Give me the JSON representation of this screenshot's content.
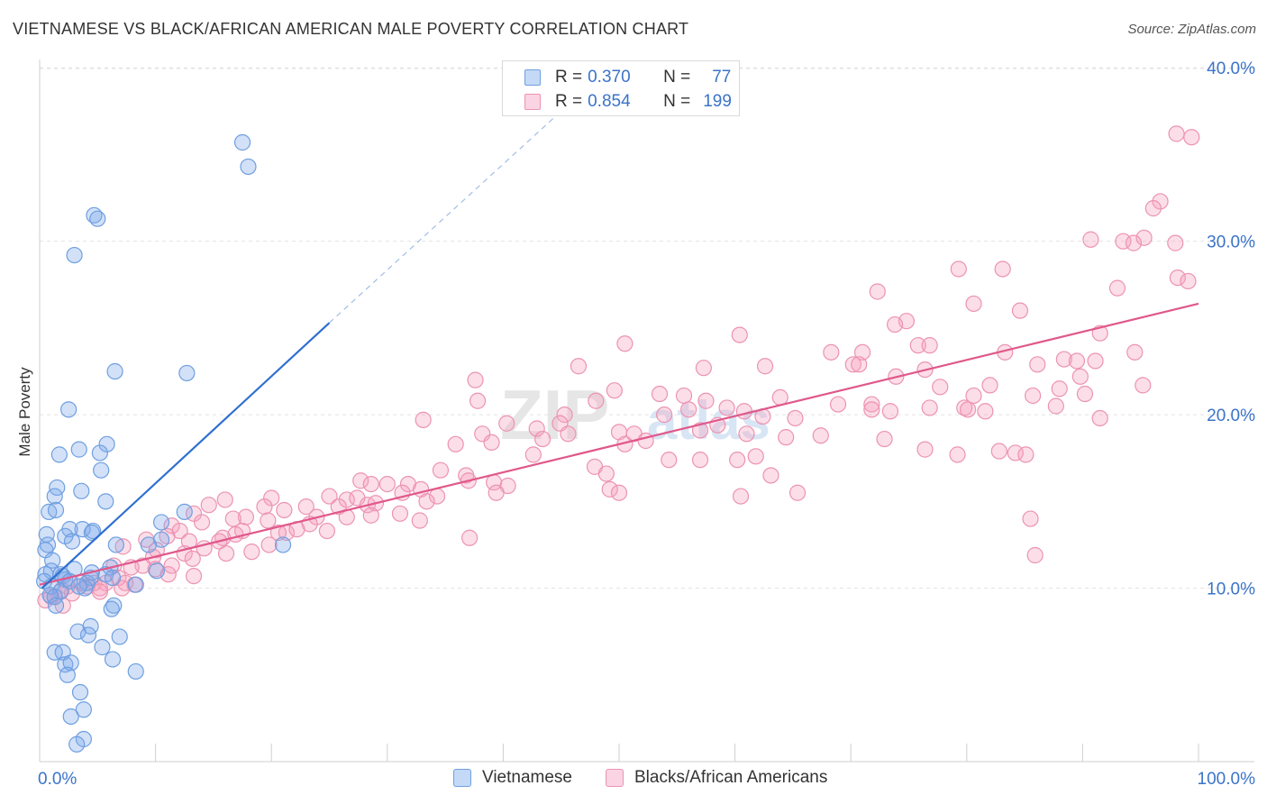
{
  "header": {
    "title": "VIETNAMESE VS BLACK/AFRICAN AMERICAN MALE POVERTY CORRELATION CHART",
    "source": "Source: ZipAtlas.com"
  },
  "watermark": {
    "zip": "ZIP",
    "atlas": "atlas"
  },
  "legend_top": [
    {
      "r_label": "R =",
      "r_value": "0.370",
      "n_label": "N =",
      "n_value": "77"
    },
    {
      "r_label": "R =",
      "r_value": "0.854",
      "n_label": "N =",
      "n_value": "199"
    }
  ],
  "legend_bottom": [
    {
      "label": "Vietnamese"
    },
    {
      "label": "Blacks/African Americans"
    }
  ],
  "colors": {
    "blue_fill": "rgba(125,170,235,0.35)",
    "blue_stroke": "#6f9fe0",
    "blue_line": "#2f6fd0",
    "pink_fill": "rgba(245,160,190,0.35)",
    "pink_stroke": "#ec93b2",
    "pink_line": "#e0588a",
    "axis_label": "#3b73c9",
    "grid": "#e2e2e2"
  },
  "chart_data": {
    "type": "scatter",
    "title": "VIETNAMESE VS BLACK/AFRICAN AMERICAN MALE POVERTY CORRELATION CHART",
    "xlabel": "",
    "ylabel": "Male Poverty",
    "xlim": [
      0,
      100
    ],
    "ylim": [
      0,
      41
    ],
    "x_tick_labels": [
      "0.0%",
      "100.0%"
    ],
    "y_ticks": [
      10,
      20,
      30,
      40
    ],
    "y_tick_labels": [
      "10.0%",
      "20.0%",
      "30.0%",
      "40.0%"
    ],
    "grid": true,
    "series": [
      {
        "name": "Vietnamese",
        "R": 0.37,
        "N": 77,
        "trend_solid": [
          [
            0.2,
            10.0
          ],
          [
            25.0,
            25.3
          ]
        ],
        "trend_dashed": [
          [
            25.0,
            25.3
          ],
          [
            45.0,
            37.5
          ]
        ],
        "points": [
          [
            17.5,
            35.7
          ],
          [
            18.0,
            34.3
          ],
          [
            4.7,
            31.5
          ],
          [
            5.0,
            31.3
          ],
          [
            3.0,
            29.2
          ],
          [
            6.5,
            22.5
          ],
          [
            12.7,
            22.4
          ],
          [
            2.5,
            20.3
          ],
          [
            5.8,
            18.3
          ],
          [
            3.4,
            18.0
          ],
          [
            1.7,
            17.7
          ],
          [
            5.2,
            17.8
          ],
          [
            5.3,
            16.8
          ],
          [
            1.5,
            15.8
          ],
          [
            3.6,
            15.6
          ],
          [
            1.3,
            15.3
          ],
          [
            5.7,
            15.0
          ],
          [
            0.8,
            14.4
          ],
          [
            12.5,
            14.4
          ],
          [
            1.4,
            14.5
          ],
          [
            10.5,
            13.8
          ],
          [
            3.7,
            13.4
          ],
          [
            2.6,
            13.4
          ],
          [
            4.6,
            13.3
          ],
          [
            4.5,
            13.2
          ],
          [
            0.6,
            13.1
          ],
          [
            2.2,
            13.0
          ],
          [
            0.7,
            12.5
          ],
          [
            2.8,
            12.7
          ],
          [
            6.6,
            12.5
          ],
          [
            0.5,
            12.2
          ],
          [
            10.5,
            12.8
          ],
          [
            9.4,
            12.5
          ],
          [
            21.0,
            12.5
          ],
          [
            1.1,
            11.6
          ],
          [
            3.0,
            11.1
          ],
          [
            1.0,
            11.0
          ],
          [
            10.1,
            11.0
          ],
          [
            0.5,
            10.8
          ],
          [
            1.8,
            10.8
          ],
          [
            2.0,
            10.7
          ],
          [
            6.1,
            11.2
          ],
          [
            5.7,
            10.8
          ],
          [
            4.4,
            10.6
          ],
          [
            6.3,
            10.6
          ],
          [
            0.4,
            10.4
          ],
          [
            4.1,
            10.3
          ],
          [
            3.9,
            10.0
          ],
          [
            2.2,
            10.5
          ],
          [
            1.0,
            10.1
          ],
          [
            8.3,
            10.2
          ],
          [
            3.4,
            10.1
          ],
          [
            1.8,
            9.8
          ],
          [
            1.3,
            9.5
          ],
          [
            0.9,
            9.6
          ],
          [
            1.4,
            9.0
          ],
          [
            6.4,
            9.0
          ],
          [
            6.2,
            8.8
          ],
          [
            4.4,
            7.8
          ],
          [
            3.3,
            7.5
          ],
          [
            4.2,
            7.3
          ],
          [
            6.9,
            7.2
          ],
          [
            1.3,
            6.3
          ],
          [
            5.4,
            6.6
          ],
          [
            2.0,
            6.3
          ],
          [
            6.3,
            5.9
          ],
          [
            2.2,
            5.6
          ],
          [
            2.7,
            5.7
          ],
          [
            8.3,
            5.2
          ],
          [
            2.4,
            5.0
          ],
          [
            3.5,
            4.0
          ],
          [
            3.8,
            3.0
          ],
          [
            2.7,
            2.6
          ],
          [
            3.8,
            1.3
          ],
          [
            3.2,
            1.0
          ],
          [
            4.5,
            10.9
          ],
          [
            2.6,
            10.4
          ]
        ]
      },
      {
        "name": "Blacks/African Americans",
        "R": 0.854,
        "N": 199,
        "trend_solid": [
          [
            0.0,
            10.2
          ],
          [
            100.0,
            26.4
          ]
        ],
        "points": [
          [
            98.1,
            36.2
          ],
          [
            99.4,
            36.0
          ],
          [
            96.7,
            32.3
          ],
          [
            96.1,
            31.9
          ],
          [
            95.3,
            30.2
          ],
          [
            90.7,
            30.1
          ],
          [
            93.5,
            30.0
          ],
          [
            98.0,
            29.9
          ],
          [
            94.4,
            29.9
          ],
          [
            83.1,
            28.4
          ],
          [
            79.3,
            28.4
          ],
          [
            98.2,
            27.9
          ],
          [
            99.1,
            27.7
          ],
          [
            93.0,
            27.3
          ],
          [
            72.3,
            27.1
          ],
          [
            80.6,
            26.4
          ],
          [
            84.6,
            26.0
          ],
          [
            74.8,
            25.4
          ],
          [
            73.8,
            25.2
          ],
          [
            91.5,
            24.7
          ],
          [
            60.4,
            24.6
          ],
          [
            75.8,
            24.0
          ],
          [
            76.8,
            24.0
          ],
          [
            50.5,
            24.1
          ],
          [
            68.3,
            23.6
          ],
          [
            71.0,
            23.6
          ],
          [
            94.5,
            23.6
          ],
          [
            83.3,
            23.6
          ],
          [
            88.4,
            23.2
          ],
          [
            89.5,
            23.1
          ],
          [
            86.1,
            22.9
          ],
          [
            91.1,
            23.1
          ],
          [
            70.2,
            22.9
          ],
          [
            70.7,
            22.9
          ],
          [
            62.6,
            22.8
          ],
          [
            57.3,
            22.7
          ],
          [
            76.4,
            22.6
          ],
          [
            46.5,
            22.8
          ],
          [
            73.9,
            22.2
          ],
          [
            89.8,
            22.2
          ],
          [
            37.6,
            22.0
          ],
          [
            95.2,
            21.7
          ],
          [
            77.7,
            21.6
          ],
          [
            82.0,
            21.7
          ],
          [
            88.0,
            21.5
          ],
          [
            53.5,
            21.2
          ],
          [
            49.6,
            21.4
          ],
          [
            55.6,
            21.1
          ],
          [
            63.9,
            21.0
          ],
          [
            80.6,
            21.1
          ],
          [
            85.7,
            21.1
          ],
          [
            90.2,
            21.2
          ],
          [
            37.8,
            20.8
          ],
          [
            48.0,
            20.8
          ],
          [
            57.5,
            20.8
          ],
          [
            71.8,
            20.6
          ],
          [
            68.9,
            20.6
          ],
          [
            71.8,
            20.3
          ],
          [
            87.7,
            20.5
          ],
          [
            59.3,
            20.4
          ],
          [
            60.8,
            20.2
          ],
          [
            56.0,
            20.3
          ],
          [
            79.8,
            20.4
          ],
          [
            76.8,
            20.4
          ],
          [
            80.1,
            20.3
          ],
          [
            81.6,
            20.2
          ],
          [
            73.4,
            20.2
          ],
          [
            45.3,
            20.0
          ],
          [
            53.9,
            20.0
          ],
          [
            62.4,
            19.9
          ],
          [
            91.5,
            19.8
          ],
          [
            65.2,
            19.8
          ],
          [
            33.1,
            19.7
          ],
          [
            40.3,
            19.5
          ],
          [
            44.9,
            19.5
          ],
          [
            58.5,
            19.4
          ],
          [
            42.9,
            19.2
          ],
          [
            57.0,
            19.1
          ],
          [
            50.0,
            19.0
          ],
          [
            51.3,
            18.9
          ],
          [
            45.6,
            18.9
          ],
          [
            67.4,
            18.8
          ],
          [
            61.0,
            18.9
          ],
          [
            38.2,
            18.9
          ],
          [
            72.9,
            18.6
          ],
          [
            52.3,
            18.5
          ],
          [
            64.4,
            18.7
          ],
          [
            50.5,
            18.3
          ],
          [
            39.0,
            18.4
          ],
          [
            35.9,
            18.3
          ],
          [
            43.4,
            18.6
          ],
          [
            79.2,
            17.7
          ],
          [
            76.4,
            18.0
          ],
          [
            84.2,
            17.8
          ],
          [
            85.1,
            17.7
          ],
          [
            82.8,
            17.9
          ],
          [
            42.6,
            17.7
          ],
          [
            61.8,
            17.6
          ],
          [
            60.2,
            17.4
          ],
          [
            54.3,
            17.4
          ],
          [
            57.0,
            17.4
          ],
          [
            47.9,
            17.0
          ],
          [
            34.6,
            16.8
          ],
          [
            48.9,
            16.6
          ],
          [
            36.8,
            16.5
          ],
          [
            63.1,
            16.5
          ],
          [
            37.0,
            16.2
          ],
          [
            27.7,
            16.2
          ],
          [
            28.6,
            16.0
          ],
          [
            39.2,
            16.1
          ],
          [
            31.8,
            16.0
          ],
          [
            30.0,
            16.0
          ],
          [
            40.4,
            15.9
          ],
          [
            49.2,
            15.7
          ],
          [
            50.0,
            15.5
          ],
          [
            39.4,
            15.5
          ],
          [
            65.4,
            15.5
          ],
          [
            60.5,
            15.3
          ],
          [
            32.9,
            15.7
          ],
          [
            31.3,
            15.5
          ],
          [
            34.3,
            15.3
          ],
          [
            25.0,
            15.3
          ],
          [
            26.5,
            15.1
          ],
          [
            27.4,
            15.2
          ],
          [
            20.0,
            15.2
          ],
          [
            16.0,
            15.1
          ],
          [
            28.3,
            14.8
          ],
          [
            29.0,
            14.9
          ],
          [
            14.6,
            14.8
          ],
          [
            19.4,
            14.7
          ],
          [
            25.8,
            14.7
          ],
          [
            33.4,
            15.0
          ],
          [
            23.0,
            14.7
          ],
          [
            21.1,
            14.5
          ],
          [
            13.3,
            14.3
          ],
          [
            17.8,
            14.1
          ],
          [
            31.1,
            14.3
          ],
          [
            26.5,
            14.1
          ],
          [
            23.9,
            14.1
          ],
          [
            16.7,
            14.0
          ],
          [
            19.7,
            13.9
          ],
          [
            14.0,
            13.8
          ],
          [
            32.8,
            13.9
          ],
          [
            23.3,
            13.7
          ],
          [
            28.6,
            14.2
          ],
          [
            11.4,
            13.6
          ],
          [
            17.5,
            13.3
          ],
          [
            12.1,
            13.3
          ],
          [
            21.3,
            13.2
          ],
          [
            20.6,
            13.2
          ],
          [
            16.9,
            13.1
          ],
          [
            24.8,
            13.3
          ],
          [
            22.2,
            13.4
          ],
          [
            11.0,
            13.0
          ],
          [
            15.8,
            12.9
          ],
          [
            15.5,
            12.7
          ],
          [
            9.2,
            12.8
          ],
          [
            7.2,
            12.4
          ],
          [
            12.9,
            12.7
          ],
          [
            10.1,
            12.2
          ],
          [
            14.2,
            12.3
          ],
          [
            18.3,
            12.1
          ],
          [
            19.8,
            12.5
          ],
          [
            12.5,
            12.0
          ],
          [
            16.1,
            12.0
          ],
          [
            9.8,
            11.8
          ],
          [
            13.2,
            11.7
          ],
          [
            11.4,
            11.3
          ],
          [
            8.9,
            11.3
          ],
          [
            6.4,
            11.3
          ],
          [
            7.9,
            11.2
          ],
          [
            10.0,
            11.1
          ],
          [
            11.1,
            10.8
          ],
          [
            13.3,
            10.7
          ],
          [
            6.8,
            10.6
          ],
          [
            4.7,
            10.3
          ],
          [
            7.4,
            10.3
          ],
          [
            5.7,
            10.3
          ],
          [
            8.2,
            10.2
          ],
          [
            3.6,
            10.3
          ],
          [
            2.4,
            10.1
          ],
          [
            1.9,
            9.9
          ],
          [
            5.2,
            10.0
          ],
          [
            7.1,
            10.0
          ],
          [
            1.3,
            9.5
          ],
          [
            1.0,
            9.5
          ],
          [
            2.0,
            9.0
          ],
          [
            5.2,
            9.8
          ],
          [
            4.1,
            10.1
          ],
          [
            2.8,
            9.7
          ],
          [
            0.5,
            9.3
          ],
          [
            85.5,
            14.0
          ],
          [
            85.9,
            11.9
          ],
          [
            37.1,
            12.9
          ]
        ]
      }
    ]
  }
}
